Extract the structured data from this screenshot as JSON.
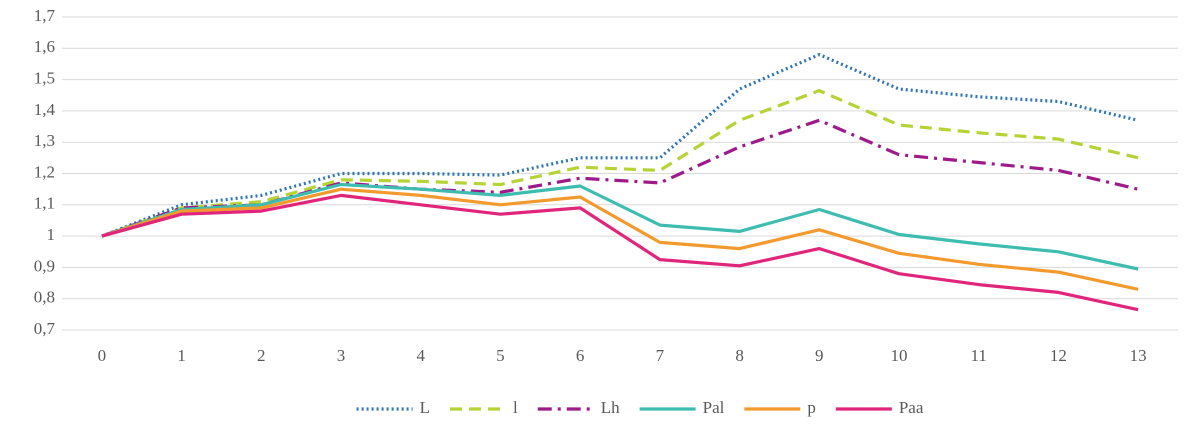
{
  "chart_data": {
    "type": "line",
    "categories": [
      "0",
      "1",
      "2",
      "3",
      "4",
      "5",
      "6",
      "7",
      "8",
      "9",
      "10",
      "11",
      "12",
      "13"
    ],
    "ylim": [
      0.7,
      1.7
    ],
    "yticks": [
      {
        "value": 0.7,
        "label": "0,7"
      },
      {
        "value": 0.8,
        "label": "0,8"
      },
      {
        "value": 0.9,
        "label": "0,9"
      },
      1,
      {
        "value": 1.1,
        "label": "1,1"
      },
      {
        "value": 1.2,
        "label": "1,2"
      },
      {
        "value": 1.3,
        "label": "1,3"
      },
      {
        "value": 1.4,
        "label": "1,4"
      },
      {
        "value": 1.5,
        "label": "1,5"
      },
      {
        "value": 1.6,
        "label": "1,6"
      },
      {
        "value": 1.7,
        "label": "1,7"
      }
    ],
    "grid": true,
    "legend": "bottom",
    "series": [
      {
        "name": "L",
        "color": "#2e75b6",
        "dash": "dotted",
        "values": [
          1,
          1.1,
          1.13,
          1.2,
          1.2,
          1.195,
          1.25,
          1.25,
          1.47,
          1.58,
          1.47,
          1.445,
          1.43,
          1.37
        ]
      },
      {
        "name": "l",
        "color": "#b5d334",
        "dash": "dashed",
        "values": [
          1,
          1.09,
          1.11,
          1.18,
          1.175,
          1.165,
          1.22,
          1.21,
          1.37,
          1.465,
          1.355,
          1.33,
          1.31,
          1.25
        ]
      },
      {
        "name": "Lh",
        "color": "#9e1a8a",
        "dash": "dashdot",
        "values": [
          1,
          1.09,
          1.1,
          1.17,
          1.15,
          1.14,
          1.185,
          1.17,
          1.285,
          1.37,
          1.26,
          1.235,
          1.21,
          1.15
        ]
      },
      {
        "name": "Pal",
        "color": "#3ebcb0",
        "dash": "solid",
        "values": [
          1,
          1.085,
          1.1,
          1.165,
          1.15,
          1.13,
          1.16,
          1.035,
          1.015,
          1.085,
          1.005,
          0.975,
          0.95,
          0.895
        ]
      },
      {
        "name": "p",
        "color": "#f39a2e",
        "dash": "solid",
        "values": [
          1,
          1.08,
          1.09,
          1.15,
          1.13,
          1.1,
          1.125,
          0.98,
          0.96,
          1.02,
          0.945,
          0.91,
          0.885,
          0.83
        ]
      },
      {
        "name": "Paa",
        "color": "#e0267a",
        "dash": "solid",
        "values": [
          1,
          1.07,
          1.08,
          1.13,
          1.1,
          1.07,
          1.09,
          0.925,
          0.905,
          0.96,
          0.88,
          0.845,
          0.82,
          0.765
        ]
      }
    ]
  }
}
